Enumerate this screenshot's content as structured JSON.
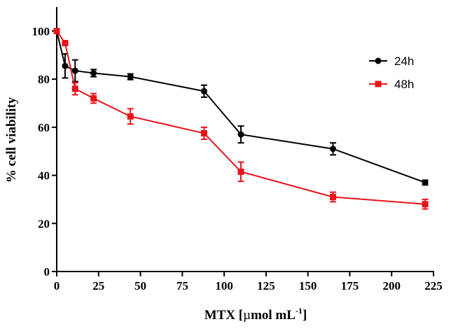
{
  "chart_data": {
    "type": "line",
    "title": "",
    "xlabel": {
      "prefix": "MTX [",
      "mu": "µ",
      "unit": "mol mL",
      "sup": "-1",
      "suffix": "]"
    },
    "ylabel": "% cell viability",
    "xlim": [
      0,
      225
    ],
    "ylim": [
      0,
      110
    ],
    "xticks": [
      0,
      25,
      50,
      75,
      100,
      125,
      150,
      175,
      200,
      225
    ],
    "yticks": [
      0,
      20,
      40,
      60,
      80,
      100
    ],
    "grid": false,
    "legend_position": "top-right",
    "series": [
      {
        "name": "24h",
        "color": "#000000",
        "marker": "circle",
        "x": [
          0,
          5,
          11,
          22,
          44,
          88,
          110,
          165,
          220
        ],
        "y": [
          100,
          85.5,
          83.5,
          82.5,
          81,
          75,
          57,
          51,
          37
        ],
        "err": [
          0.5,
          5,
          4.5,
          1.5,
          1.2,
          2.5,
          3.5,
          2.5,
          1
        ]
      },
      {
        "name": "48h",
        "color": "#e8141a",
        "marker": "square",
        "x": [
          0,
          5,
          11,
          22,
          44,
          88,
          110,
          165,
          220
        ],
        "y": [
          100,
          95,
          76,
          72,
          64.5,
          57.5,
          41.5,
          31,
          28
        ],
        "err": [
          0.5,
          0.8,
          2.5,
          2,
          3.2,
          2.5,
          4,
          2,
          2
        ]
      }
    ]
  }
}
